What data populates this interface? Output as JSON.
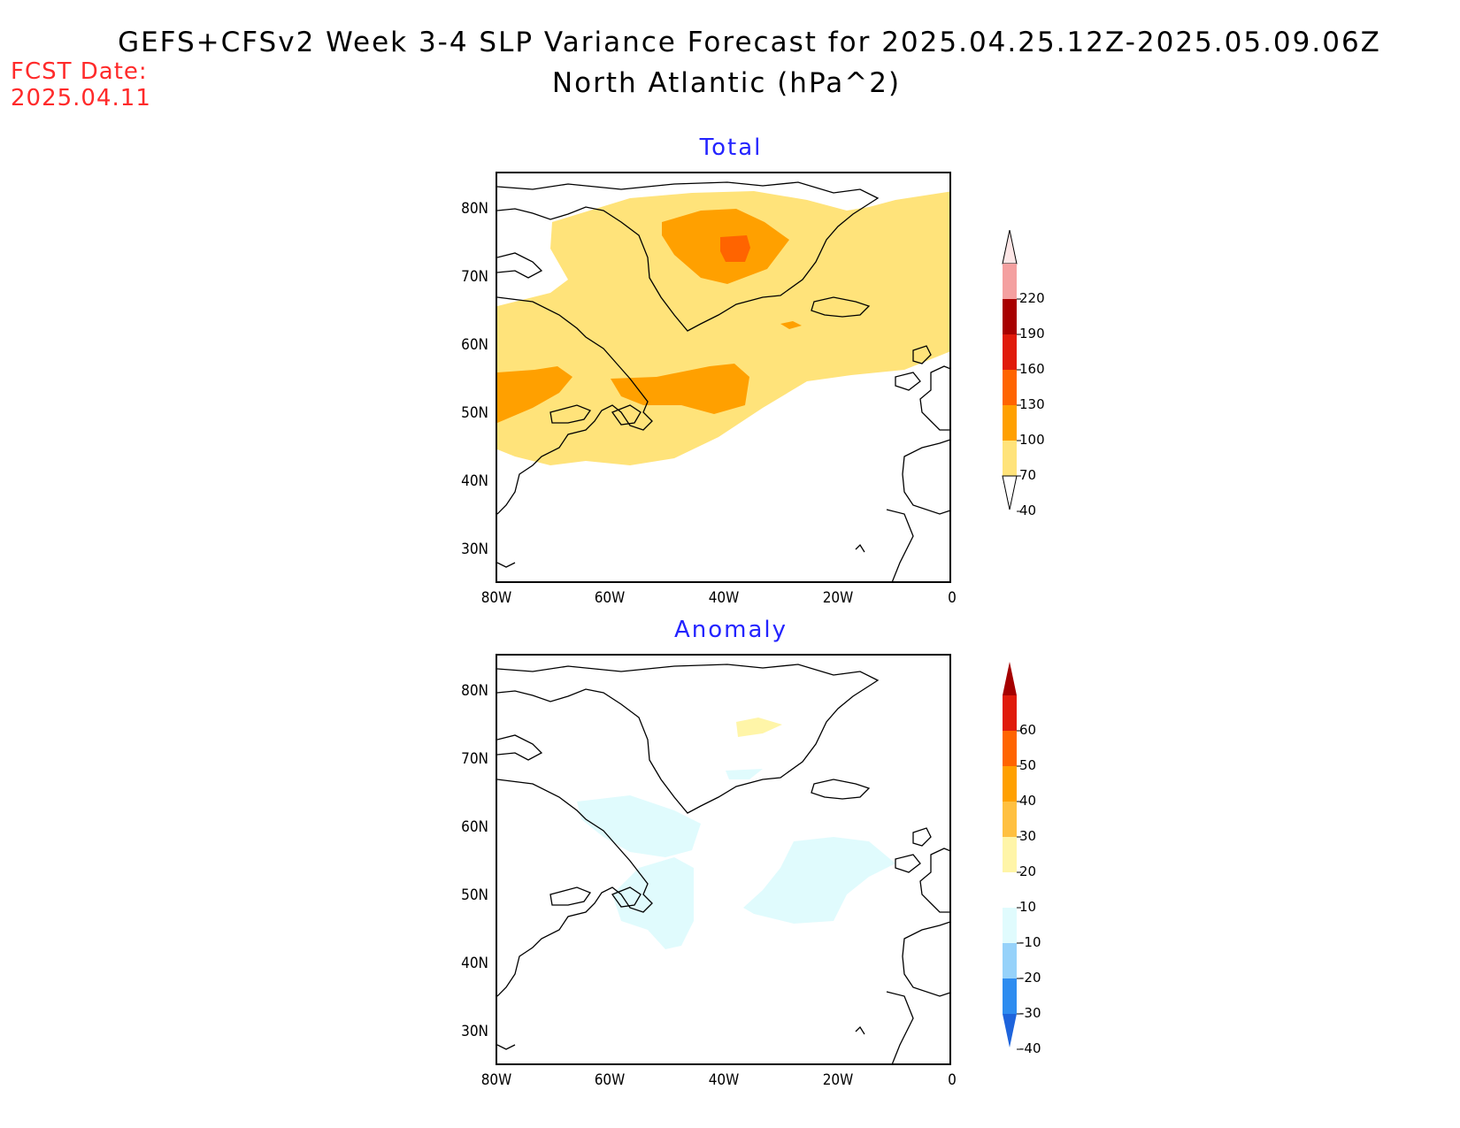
{
  "header": {
    "title_line1": "GEFS+CFSv2 Week 3-4 SLP Variance Forecast for 2025.04.25.12Z-2025.05.09.06Z",
    "title_line2": "North Atlantic (hPa^2)",
    "fcst_label": "FCST Date:",
    "fcst_date": "2025.04.11"
  },
  "axes": {
    "lat_labels": [
      "80N",
      "70N",
      "60N",
      "50N",
      "40N",
      "30N"
    ],
    "lon_labels": [
      "80W",
      "60W",
      "40W",
      "20W",
      "0"
    ]
  },
  "panels": [
    {
      "title": "Total",
      "colorbar": {
        "labels": [
          "220",
          "190",
          "160",
          "130",
          "100",
          "70",
          "40"
        ],
        "colors": [
          "#fde6e6",
          "#f4a0a0",
          "#a80000",
          "#e01a0a",
          "#ff6400",
          "#ffa000",
          "#ffe37a"
        ]
      }
    },
    {
      "title": "Anomaly",
      "colorbar": {
        "labels": [
          "60",
          "50",
          "40",
          "30",
          "20",
          "10",
          "-10",
          "-20",
          "-30",
          "-40"
        ],
        "colors": [
          "#a50000",
          "#e01a0a",
          "#ff6400",
          "#ffa000",
          "#ffc040",
          "#fff5a8",
          "#ffffff",
          "#e0fbfd",
          "#96d2fa",
          "#2d8cf0",
          "#1e64dc"
        ]
      }
    }
  ]
}
